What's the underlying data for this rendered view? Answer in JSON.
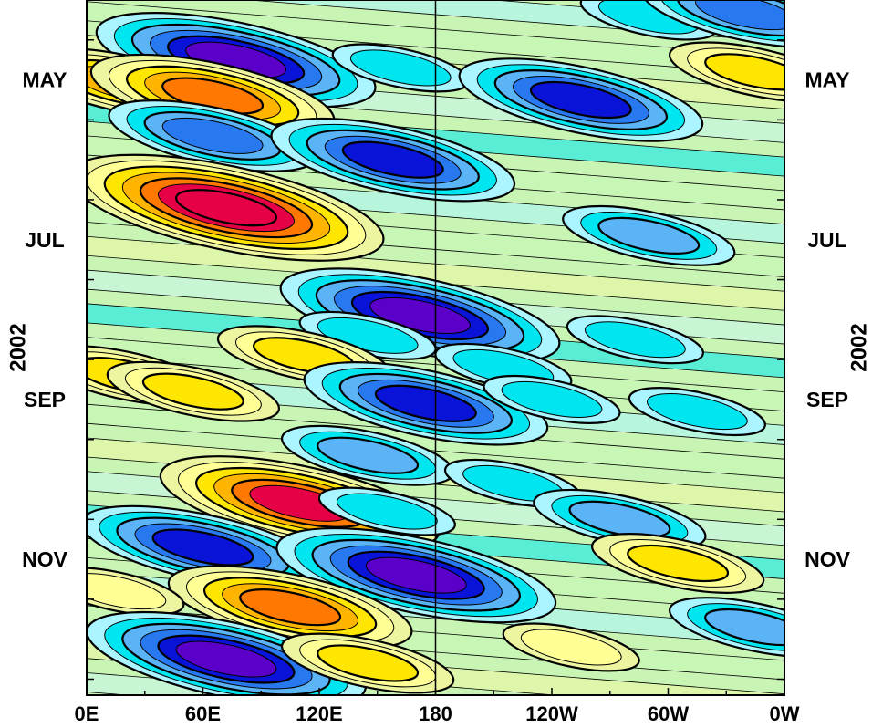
{
  "chart_data": {
    "type": "heatmap",
    "title": "",
    "xlabel": "",
    "ylabel": "2002",
    "ylabel_right": "2002",
    "x_ticks": [
      {
        "lon": 0,
        "label": "0E"
      },
      {
        "lon": 60,
        "label": "60E"
      },
      {
        "lon": 120,
        "label": "120E"
      },
      {
        "lon": 180,
        "label": "180"
      },
      {
        "lon": 240,
        "label": "120W"
      },
      {
        "lon": 300,
        "label": "60W"
      },
      {
        "lon": 360,
        "label": "0W"
      }
    ],
    "y_ticks": [
      {
        "month": 5,
        "label": "MAY"
      },
      {
        "month": 7,
        "label": "JUL"
      },
      {
        "month": 9,
        "label": "SEP"
      },
      {
        "month": 11,
        "label": "NOV"
      }
    ],
    "xlim": [
      0,
      360
    ],
    "ylim_months": [
      4,
      12.7
    ],
    "reference_line_lon": 180,
    "colormap": [
      "#5a00c8",
      "#0a14d8",
      "#2878f0",
      "#5ab4f5",
      "#00e6f0",
      "#aaf5ff",
      "#c8f5f0",
      "#c8f5b4",
      "#eef5a0",
      "#ffff96",
      "#ffe600",
      "#ffb400",
      "#ff7800",
      "#e60046"
    ],
    "anomalies": [
      {
        "lon": 77,
        "month": 4.75,
        "value": -6
      },
      {
        "lon": 162,
        "month": 4.85,
        "value": -2
      },
      {
        "lon": 290,
        "month": 4.2,
        "value": -2
      },
      {
        "lon": 340,
        "month": 4.15,
        "value": -4
      },
      {
        "lon": 20,
        "month": 5.05,
        "value": 4
      },
      {
        "lon": 65,
        "month": 5.2,
        "value": 5
      },
      {
        "lon": 345,
        "month": 4.9,
        "value": 3
      },
      {
        "lon": 255,
        "month": 5.25,
        "value": -5
      },
      {
        "lon": 65,
        "month": 5.7,
        "value": -4
      },
      {
        "lon": 158,
        "month": 6.0,
        "value": -5
      },
      {
        "lon": 72,
        "month": 6.6,
        "value": 7
      },
      {
        "lon": 290,
        "month": 6.95,
        "value": -3
      },
      {
        "lon": 172,
        "month": 7.95,
        "value": -6
      },
      {
        "lon": 145,
        "month": 8.2,
        "value": -2
      },
      {
        "lon": 283,
        "month": 8.25,
        "value": -2
      },
      {
        "lon": 20,
        "month": 8.7,
        "value": 3
      },
      {
        "lon": 55,
        "month": 8.9,
        "value": 3
      },
      {
        "lon": 112,
        "month": 8.45,
        "value": 3
      },
      {
        "lon": 215,
        "month": 8.6,
        "value": -2
      },
      {
        "lon": 175,
        "month": 9.05,
        "value": -5
      },
      {
        "lon": 240,
        "month": 9.0,
        "value": -2
      },
      {
        "lon": 315,
        "month": 9.15,
        "value": -2
      },
      {
        "lon": 145,
        "month": 9.7,
        "value": -3
      },
      {
        "lon": 220,
        "month": 10.05,
        "value": -2
      },
      {
        "lon": 110,
        "month": 10.3,
        "value": 6
      },
      {
        "lon": 275,
        "month": 10.5,
        "value": -3
      },
      {
        "lon": 155,
        "month": 10.4,
        "value": -2
      },
      {
        "lon": 60,
        "month": 10.85,
        "value": -5
      },
      {
        "lon": 305,
        "month": 11.05,
        "value": 3
      },
      {
        "lon": 170,
        "month": 11.2,
        "value": -6
      },
      {
        "lon": 105,
        "month": 11.6,
        "value": 5
      },
      {
        "lon": 15,
        "month": 11.4,
        "value": 2
      },
      {
        "lon": 72,
        "month": 12.25,
        "value": -6
      },
      {
        "lon": 145,
        "month": 12.3,
        "value": 3
      },
      {
        "lon": 345,
        "month": 11.85,
        "value": -3
      },
      {
        "lon": 250,
        "month": 12.1,
        "value": 2
      }
    ]
  }
}
